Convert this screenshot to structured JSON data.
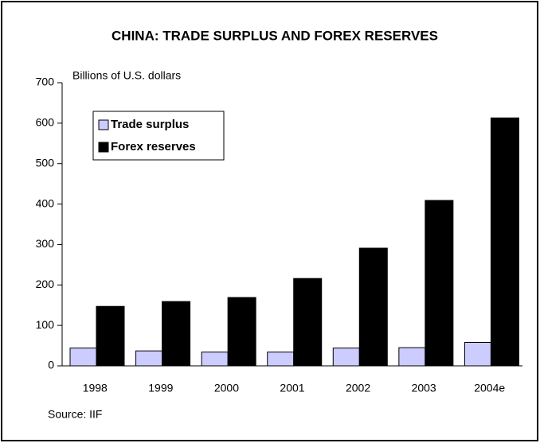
{
  "chart_data": {
    "type": "bar",
    "title": "CHINA: TRADE SURPLUS AND FOREX RESERVES",
    "y_label": "Billions of U.S. dollars",
    "source": "Source: IIF",
    "categories": [
      "1998",
      "1999",
      "2000",
      "2001",
      "2002",
      "2003",
      "2004e"
    ],
    "series": [
      {
        "name": "Trade surplus",
        "color": "#ccccff",
        "values": [
          44,
          37,
          34,
          34,
          44,
          45,
          58
        ]
      },
      {
        "name": "Forex reserves",
        "color": "#000000",
        "values": [
          147,
          159,
          169,
          216,
          291,
          409,
          613
        ]
      }
    ],
    "ylim": [
      0,
      700
    ],
    "yticks": [
      0,
      100,
      200,
      300,
      400,
      500,
      600,
      700
    ],
    "legend": "upper left"
  }
}
